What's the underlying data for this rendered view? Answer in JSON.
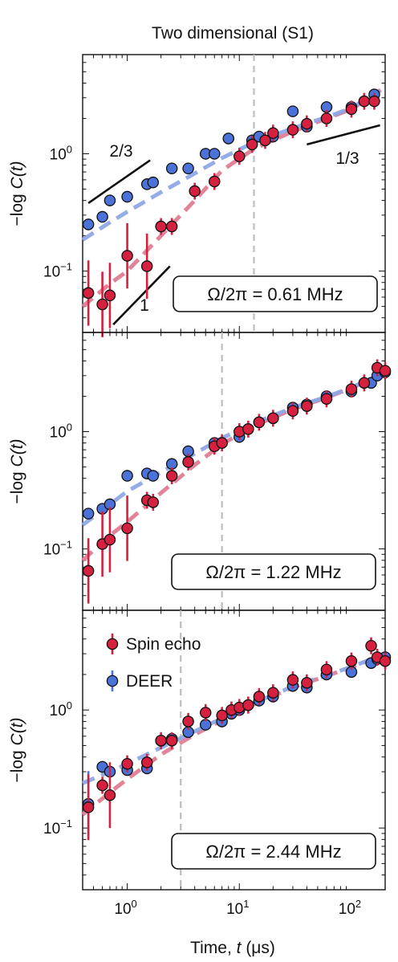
{
  "figure": {
    "title": "Two dimensional (S1)",
    "xlabel_prefix": "Time, ",
    "xlabel_var": "t",
    "xlabel_unit": " (μs)",
    "ylabel_prefix": "−log ",
    "ylabel_var": "C(t)",
    "xticks": [
      {
        "value": 1,
        "base": "10",
        "exp": "0"
      },
      {
        "value": 10,
        "base": "10",
        "exp": "1"
      },
      {
        "value": 100,
        "base": "10",
        "exp": "2"
      }
    ],
    "yticks": [
      {
        "value": 0.1,
        "base": "10",
        "exp": "−1"
      },
      {
        "value": 1,
        "base": "10",
        "exp": "0"
      }
    ],
    "legend": [
      {
        "label": "Spin echo",
        "color": "#d6203f"
      },
      {
        "label": "DEER",
        "color": "#4a72d9"
      }
    ],
    "colors": {
      "spin_echo": "#d6203f",
      "deer": "#4a72d9",
      "spin_fit": "#e07d93",
      "deer_fit": "#8fa8e6",
      "vline": "#bdbdbd"
    }
  },
  "chart_data": [
    {
      "type": "scatter",
      "panel_label": "Ω/2π = 0.61 MHz",
      "x_scale": "log",
      "y_scale": "log",
      "xlim": [
        0.4,
        200
      ],
      "ylim": [
        0.03,
        7
      ],
      "vline_x": 13.5,
      "series": [
        {
          "name": "Spin echo",
          "x": [
            0.45,
            0.6,
            0.7,
            1.0,
            1.5,
            2.0,
            2.5,
            4.0,
            6.0,
            10.0,
            13.0,
            17.0,
            20.0,
            30.0,
            40.0,
            60.0,
            100.0,
            130.0,
            160.0
          ],
          "y": [
            0.065,
            0.052,
            0.062,
            0.135,
            0.11,
            0.24,
            0.24,
            0.48,
            0.58,
            0.95,
            1.2,
            1.3,
            1.5,
            1.6,
            1.8,
            2.0,
            2.4,
            2.8,
            2.8
          ]
        },
        {
          "name": "DEER",
          "x": [
            0.45,
            0.6,
            0.7,
            1.0,
            1.5,
            1.7,
            2.5,
            3.5,
            5.0,
            6.0,
            8.0,
            13.0,
            15.0,
            20.0,
            30.0,
            40.0,
            60.0,
            100.0,
            160.0
          ],
          "y": [
            0.25,
            0.29,
            0.4,
            0.43,
            0.55,
            0.57,
            0.75,
            0.75,
            1.0,
            1.0,
            1.35,
            1.3,
            1.4,
            1.4,
            2.3,
            1.7,
            2.5,
            2.5,
            3.2
          ]
        }
      ],
      "fits": [
        {
          "series": "Spin echo",
          "x": [
            0.4,
            0.7,
            1.0,
            2.0,
            4.0,
            7.0,
            13.5,
            30.0,
            60.0,
            100.0,
            200.0
          ],
          "y": [
            0.05,
            0.078,
            0.1,
            0.2,
            0.4,
            0.72,
            1.1,
            1.55,
            2.0,
            2.4,
            3.7
          ]
        },
        {
          "series": "DEER",
          "x": [
            0.4,
            0.7,
            1.0,
            2.0,
            4.0,
            7.0,
            13.5,
            30.0,
            60.0,
            100.0,
            200.0
          ],
          "y": [
            0.185,
            0.26,
            0.32,
            0.47,
            0.68,
            0.92,
            1.25,
            1.65,
            2.05,
            2.45,
            3.7
          ]
        }
      ],
      "slope_guides": [
        {
          "label": "2/3",
          "x": [
            0.45,
            1.6
          ],
          "y": [
            0.38,
            0.88
          ]
        },
        {
          "label": "1",
          "x": [
            0.75,
            2.4
          ],
          "y": [
            0.035,
            0.11
          ]
        },
        {
          "label": "1/3",
          "x": [
            40,
            180
          ],
          "y": [
            1.2,
            1.75
          ]
        }
      ]
    },
    {
      "type": "scatter",
      "panel_label": "Ω/2π = 1.22 MHz",
      "x_scale": "log",
      "y_scale": "log",
      "xlim": [
        0.4,
        200
      ],
      "ylim": [
        0.03,
        7
      ],
      "vline_x": 7.0,
      "series": [
        {
          "name": "Spin echo",
          "x": [
            0.45,
            0.6,
            0.7,
            1.0,
            1.5,
            1.7,
            2.5,
            3.5,
            6.0,
            7.0,
            10.0,
            12.0,
            15.0,
            20.0,
            30.0,
            40.0,
            60.0,
            100.0,
            130.0,
            170.0,
            200.0
          ],
          "y": [
            0.065,
            0.11,
            0.12,
            0.15,
            0.26,
            0.25,
            0.42,
            0.55,
            0.75,
            0.8,
            1.0,
            1.05,
            1.2,
            1.3,
            1.5,
            1.65,
            1.9,
            2.3,
            2.6,
            3.5,
            3.3
          ]
        },
        {
          "name": "DEER",
          "x": [
            0.45,
            0.6,
            0.7,
            1.0,
            1.5,
            1.7,
            2.5,
            3.5,
            6.0,
            7.0,
            10.0,
            12.0,
            15.0,
            20.0,
            30.0,
            40.0,
            60.0,
            100.0,
            150.0,
            170.0,
            200.0
          ],
          "y": [
            0.2,
            0.22,
            0.24,
            0.42,
            0.44,
            0.42,
            0.53,
            0.68,
            0.8,
            0.8,
            0.9,
            1.05,
            1.2,
            1.3,
            1.6,
            1.7,
            2.0,
            2.2,
            2.6,
            3.0,
            3.2
          ]
        }
      ],
      "fits": [
        {
          "series": "Spin echo",
          "x": [
            0.4,
            0.7,
            1.0,
            2.0,
            4.0,
            7.0,
            13.5,
            30.0,
            60.0,
            100.0,
            200.0
          ],
          "y": [
            0.08,
            0.13,
            0.17,
            0.3,
            0.52,
            0.78,
            1.12,
            1.55,
            1.95,
            2.35,
            3.2
          ]
        },
        {
          "series": "DEER",
          "x": [
            0.4,
            0.7,
            1.0,
            2.0,
            4.0,
            7.0,
            13.5,
            30.0,
            60.0,
            100.0,
            200.0
          ],
          "y": [
            0.16,
            0.24,
            0.31,
            0.45,
            0.65,
            0.88,
            1.18,
            1.6,
            1.98,
            2.38,
            3.2
          ]
        }
      ]
    },
    {
      "type": "scatter",
      "panel_label": "Ω/2π = 2.44 MHz",
      "x_scale": "log",
      "y_scale": "log",
      "xlim": [
        0.4,
        200
      ],
      "ylim": [
        0.03,
        7
      ],
      "vline_x": 3.0,
      "series": [
        {
          "name": "Spin echo",
          "x": [
            0.45,
            0.6,
            0.7,
            1.0,
            1.5,
            2.0,
            2.5,
            3.5,
            5.0,
            7.0,
            8.5,
            10.0,
            12.0,
            15.0,
            20.0,
            30.0,
            40.0,
            60.0,
            100.0,
            150.0,
            170.0,
            200.0
          ],
          "y": [
            0.15,
            0.23,
            0.19,
            0.35,
            0.36,
            0.55,
            0.55,
            0.8,
            0.95,
            0.9,
            1.0,
            1.05,
            1.1,
            1.3,
            1.4,
            1.8,
            1.7,
            2.2,
            2.6,
            3.5,
            2.8,
            2.6
          ]
        },
        {
          "name": "DEER",
          "x": [
            0.45,
            0.6,
            0.7,
            1.0,
            1.5,
            2.0,
            2.5,
            3.5,
            5.0,
            7.0,
            8.5,
            10.0,
            12.0,
            15.0,
            20.0,
            30.0,
            40.0,
            60.0,
            100.0,
            150.0,
            170.0,
            200.0
          ],
          "y": [
            0.16,
            0.33,
            0.3,
            0.31,
            0.32,
            0.55,
            0.57,
            0.65,
            0.75,
            0.8,
            0.93,
            1.0,
            1.1,
            1.2,
            1.3,
            1.6,
            1.55,
            2.0,
            2.1,
            2.5,
            2.7,
            2.8
          ]
        }
      ],
      "fits": [
        {
          "series": "Spin echo",
          "x": [
            0.4,
            0.7,
            1.0,
            2.0,
            4.0,
            7.0,
            13.5,
            30.0,
            60.0,
            100.0,
            200.0
          ],
          "y": [
            0.13,
            0.2,
            0.26,
            0.42,
            0.62,
            0.82,
            1.12,
            1.55,
            1.95,
            2.3,
            3.0
          ]
        },
        {
          "series": "DEER",
          "x": [
            0.4,
            0.7,
            1.0,
            2.0,
            4.0,
            7.0,
            13.5,
            30.0,
            60.0,
            100.0,
            200.0
          ],
          "y": [
            0.24,
            0.3,
            0.35,
            0.48,
            0.66,
            0.85,
            1.15,
            1.58,
            1.97,
            2.32,
            3.0
          ]
        }
      ]
    }
  ]
}
